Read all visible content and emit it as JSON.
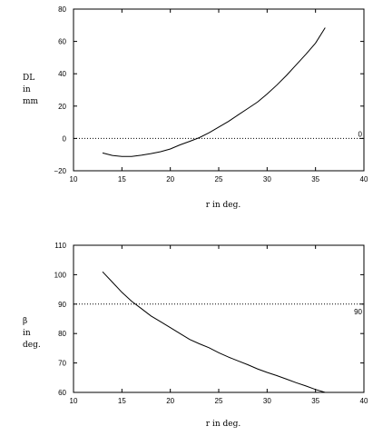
{
  "chart_data": [
    {
      "type": "line",
      "xlabel": "r in deg.",
      "ylabel_lines": [
        "DL",
        "in",
        "mm"
      ],
      "xlim": [
        10,
        40
      ],
      "ylim": [
        -20,
        80
      ],
      "xticks": [
        "10",
        "15",
        "20",
        "25",
        "30",
        "35",
        "40"
      ],
      "yticks": [
        "80",
        "60",
        "40",
        "20",
        "0",
        "−20"
      ],
      "grid": false,
      "reference_line": {
        "y": 0,
        "label": "0",
        "style": "dotted"
      },
      "series": [
        {
          "x": [
            13,
            14,
            15,
            16,
            17,
            18,
            19,
            20,
            21,
            22,
            23,
            24,
            25,
            26,
            27,
            28,
            29,
            30,
            31,
            32,
            33,
            34,
            35,
            36
          ],
          "y": [
            -9,
            -10.5,
            -11.2,
            -11.2,
            -10.4,
            -9.4,
            -8.2,
            -6.5,
            -4,
            -1.8,
            0.5,
            3.5,
            7,
            10.5,
            14.5,
            18.5,
            22.5,
            27.5,
            33,
            39,
            45.5,
            52,
            59,
            68.5
          ]
        }
      ]
    },
    {
      "type": "line",
      "xlabel": "r in deg.",
      "ylabel_lines": [
        "β",
        "in",
        "deg."
      ],
      "xlim": [
        10,
        40
      ],
      "ylim": [
        60,
        110
      ],
      "xticks": [
        "10",
        "15",
        "20",
        "25",
        "30",
        "35",
        "40"
      ],
      "yticks": [
        "110",
        "100",
        "90",
        "80",
        "70",
        "60"
      ],
      "grid": false,
      "reference_line": {
        "y": 90,
        "label": "90",
        "style": "dotted"
      },
      "series": [
        {
          "x": [
            13,
            14,
            15,
            16,
            17,
            18,
            19,
            20,
            21,
            22,
            23,
            24,
            25,
            26,
            27,
            28,
            29,
            30,
            31,
            32,
            33,
            34,
            35,
            36
          ],
          "y": [
            101,
            97.5,
            94,
            91,
            88.5,
            86,
            84,
            82,
            80,
            78,
            76.5,
            75.2,
            73.5,
            72,
            70.7,
            69.4,
            68,
            66.8,
            65.7,
            64.5,
            63.3,
            62.2,
            61,
            60
          ]
        }
      ]
    }
  ]
}
